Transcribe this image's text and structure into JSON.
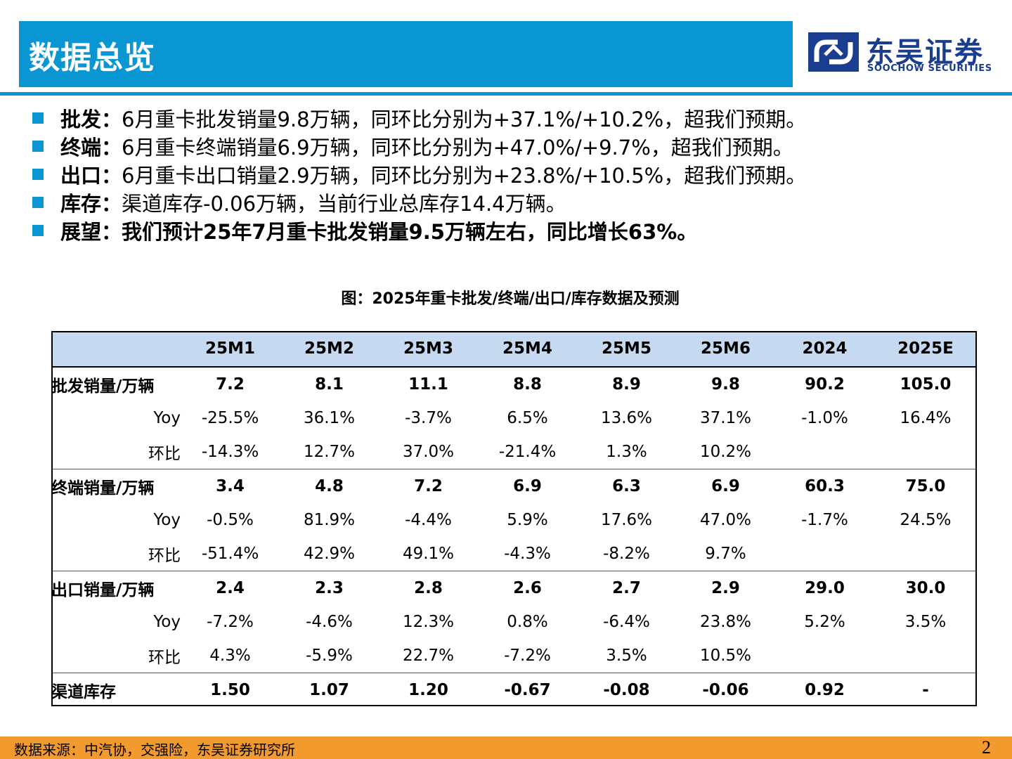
{
  "header": {
    "title": "数据总览"
  },
  "logo": {
    "cn": "东吴证券",
    "en": "SOOCHOW SECURITIES",
    "brand_color": "#1a3d8f"
  },
  "colors": {
    "accent": "#0996d3",
    "table_header": "#c5daf1",
    "footer": "#f29a2e"
  },
  "bullets": [
    {
      "key": "批发：",
      "text": "6月重卡批发销量9.8万辆，同环比分别为+37.1%/+10.2%，超我们预期。"
    },
    {
      "key": "终端：",
      "text": "6月重卡终端销量6.9万辆，同环比分别为+47.0%/+9.7%，超我们预期。"
    },
    {
      "key": "出口：",
      "text": "6月重卡出口销量2.9万辆，同环比分别为+23.8%/+10.5%，超我们预期。"
    },
    {
      "key": "库存：",
      "text": "渠道库存-0.06万辆，当前行业总库存14.4万辆。"
    },
    {
      "key": "展望：",
      "text": "我们预计25年7月重卡批发销量9.5万辆左右，同比增长63%。"
    }
  ],
  "figure": {
    "title": "图：2025年重卡批发/终端/出口/库存数据及预测"
  },
  "table": {
    "columns": [
      "",
      "25M1",
      "25M2",
      "25M3",
      "25M4",
      "25M5",
      "25M6",
      "2024",
      "2025E"
    ],
    "rows": [
      [
        "批发销量/万辆",
        "7.2",
        "8.1",
        "11.1",
        "8.8",
        "8.9",
        "9.8",
        "90.2",
        "105.0"
      ],
      [
        "Yoy",
        "-25.5%",
        "36.1%",
        "-3.7%",
        "6.5%",
        "13.6%",
        "37.1%",
        "-1.0%",
        "16.4%"
      ],
      [
        "环比",
        "-14.3%",
        "12.7%",
        "37.0%",
        "-21.4%",
        "1.3%",
        "10.2%",
        "",
        ""
      ],
      [
        "终端销量/万辆",
        "3.4",
        "4.8",
        "7.2",
        "6.9",
        "6.3",
        "6.9",
        "60.3",
        "75.0"
      ],
      [
        "Yoy",
        "-0.5%",
        "81.9%",
        "-4.4%",
        "5.9%",
        "17.6%",
        "47.0%",
        "-1.7%",
        "24.5%"
      ],
      [
        "环比",
        "-51.4%",
        "42.9%",
        "49.1%",
        "-4.3%",
        "-8.2%",
        "9.7%",
        "",
        ""
      ],
      [
        "出口销量/万辆",
        "2.4",
        "2.3",
        "2.8",
        "2.6",
        "2.7",
        "2.9",
        "29.0",
        "30.0"
      ],
      [
        "Yoy",
        "-7.2%",
        "-4.6%",
        "12.3%",
        "0.8%",
        "-6.4%",
        "23.8%",
        "5.2%",
        "3.5%"
      ],
      [
        "环比",
        "4.3%",
        "-5.9%",
        "22.7%",
        "-7.2%",
        "3.5%",
        "10.5%",
        "",
        ""
      ],
      [
        "渠道库存",
        "1.50",
        "1.07",
        "1.20",
        "-0.67",
        "-0.08",
        "-0.06",
        "0.92",
        "-"
      ]
    ]
  },
  "footer": {
    "source": "数据来源：中汽协，交强险，东吴证券研究所",
    "page": "2"
  }
}
